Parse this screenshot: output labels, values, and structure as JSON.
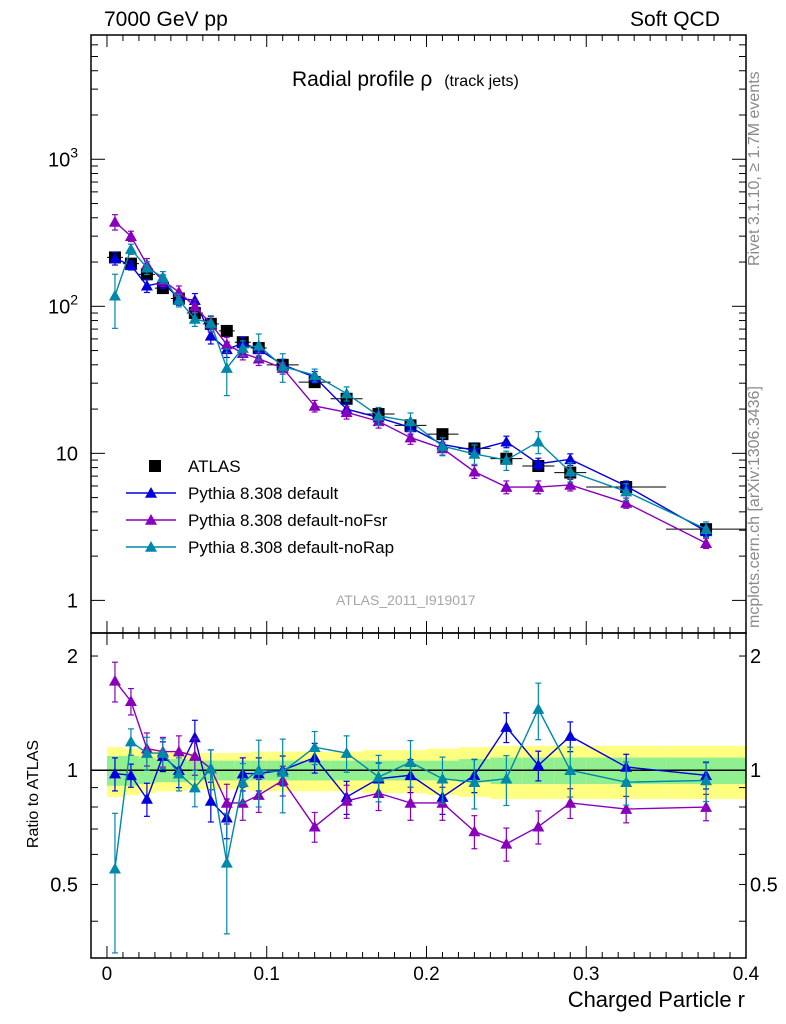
{
  "header": {
    "left": "7000 GeV pp",
    "right": "Soft QCD"
  },
  "side": {
    "rivet": "Rivet 3.1.10, ≥ 1.7M events",
    "mcplots": "mcplots.cern.ch [arXiv:1306.3436]"
  },
  "chart_data": {
    "type": "scatter",
    "title_main": "Radial profile ρ",
    "title_sub": "(track jets)",
    "analysis_tag": "ATLAS_2011_I919017",
    "xlabel": "Charged Particle r",
    "ratio_ylabel": "Ratio to ATLAS",
    "xlim": [
      -0.01,
      0.4
    ],
    "ylim": [
      0.6,
      7000
    ],
    "yscale": "log",
    "ratio_ylim": [
      0.32,
      2.3
    ],
    "ratio_yscale": "log",
    "x_tick_labels": [
      "0",
      "0.1",
      "0.2",
      "0.3",
      "0.4"
    ],
    "y_tick_labels": [
      "1",
      "10",
      "10^2",
      "10^3"
    ],
    "ratio_tick_labels": [
      "0.5",
      "1",
      "2"
    ],
    "legend_position": "lower-left",
    "x": [
      0.005,
      0.015,
      0.025,
      0.035,
      0.045,
      0.055,
      0.065,
      0.075,
      0.085,
      0.095,
      0.11,
      0.13,
      0.15,
      0.17,
      0.19,
      0.21,
      0.23,
      0.25,
      0.27,
      0.29,
      0.325,
      0.375
    ],
    "x_halfwidth": [
      0.005,
      0.005,
      0.005,
      0.005,
      0.005,
      0.005,
      0.005,
      0.005,
      0.005,
      0.005,
      0.01,
      0.01,
      0.01,
      0.01,
      0.01,
      0.01,
      0.01,
      0.01,
      0.01,
      0.01,
      0.025,
      0.025
    ],
    "series": [
      {
        "name": "ATLAS",
        "color": "#000000",
        "marker": "square",
        "values": [
          215,
          195,
          165,
          133,
          113,
          90,
          76,
          68,
          57,
          52,
          40,
          30.5,
          23.5,
          18.5,
          15.5,
          13.5,
          10.8,
          9.2,
          8.2,
          7.4,
          5.9,
          3.05
        ],
        "band_inner": [
          0.09,
          0.09,
          0.08,
          0.07,
          0.07,
          0.06,
          0.06,
          0.06,
          0.06,
          0.06,
          0.06,
          0.06,
          0.06,
          0.06,
          0.06,
          0.06,
          0.07,
          0.08,
          0.08,
          0.08,
          0.08,
          0.08
        ],
        "band_outer": [
          0.15,
          0.14,
          0.13,
          0.12,
          0.12,
          0.11,
          0.11,
          0.11,
          0.11,
          0.12,
          0.12,
          0.12,
          0.12,
          0.13,
          0.13,
          0.14,
          0.15,
          0.16,
          0.16,
          0.16,
          0.16,
          0.16
        ]
      },
      {
        "name": "Pythia 8.308 default",
        "color": "#0000dd",
        "marker": "triangle",
        "values": [
          212,
          190,
          138,
          145,
          113,
          110,
          63,
          51,
          56,
          51,
          40,
          33,
          20,
          17.5,
          15,
          11.5,
          10.5,
          12,
          8.5,
          9.1,
          6.0,
          2.95
        ],
        "ratio": [
          0.98,
          0.97,
          0.84,
          1.09,
          1.0,
          1.22,
          0.83,
          0.75,
          0.98,
          0.98,
          1.0,
          1.08,
          0.85,
          0.95,
          0.97,
          0.85,
          0.97,
          1.3,
          1.03,
          1.23,
          1.02,
          0.97
        ],
        "rel_err": [
          0.1,
          0.07,
          0.1,
          0.09,
          0.1,
          0.11,
          0.12,
          0.12,
          0.1,
          0.1,
          0.09,
          0.09,
          0.1,
          0.1,
          0.1,
          0.1,
          0.1,
          0.09,
          0.09,
          0.09,
          0.08,
          0.08
        ]
      },
      {
        "name": "Pythia 8.308 default-noFsr",
        "color": "#8800bb",
        "marker": "triangle",
        "values": [
          375,
          300,
          192,
          150,
          125,
          100,
          76,
          55,
          48,
          44,
          38,
          21,
          19,
          16.5,
          12.8,
          10.8,
          7.5,
          5.9,
          5.9,
          6.1,
          4.6,
          2.45
        ],
        "ratio": [
          1.72,
          1.52,
          1.14,
          1.12,
          1.12,
          1.09,
          1.01,
          0.82,
          0.82,
          0.86,
          0.94,
          0.71,
          0.83,
          0.87,
          0.82,
          0.82,
          0.69,
          0.64,
          0.71,
          0.82,
          0.79,
          0.8
        ],
        "rel_err": [
          0.12,
          0.08,
          0.1,
          0.09,
          0.1,
          0.11,
          0.12,
          0.12,
          0.1,
          0.1,
          0.09,
          0.09,
          0.1,
          0.1,
          0.1,
          0.1,
          0.1,
          0.1,
          0.1,
          0.09,
          0.08,
          0.08
        ]
      },
      {
        "name": "Pythia 8.308 default-noRap",
        "color": "#0088aa",
        "marker": "triangle",
        "values": [
          118,
          245,
          183,
          158,
          110,
          82,
          77,
          38,
          52,
          54,
          39,
          34,
          25.5,
          18,
          16.5,
          11.2,
          9.9,
          9.0,
          12,
          7.5,
          5.5,
          3.05
        ],
        "ratio": [
          0.55,
          1.19,
          1.11,
          1.11,
          0.98,
          0.9,
          1.01,
          0.57,
          0.93,
          1.0,
          0.99,
          1.15,
          1.11,
          0.96,
          1.05,
          0.95,
          0.93,
          0.95,
          1.45,
          1.0,
          0.93,
          0.94
        ],
        "rel_err": [
          0.4,
          0.08,
          0.1,
          0.09,
          0.1,
          0.11,
          0.12,
          0.35,
          0.12,
          0.2,
          0.22,
          0.1,
          0.11,
          0.14,
          0.14,
          0.14,
          0.15,
          0.15,
          0.17,
          0.15,
          0.13,
          0.12
        ]
      }
    ]
  }
}
